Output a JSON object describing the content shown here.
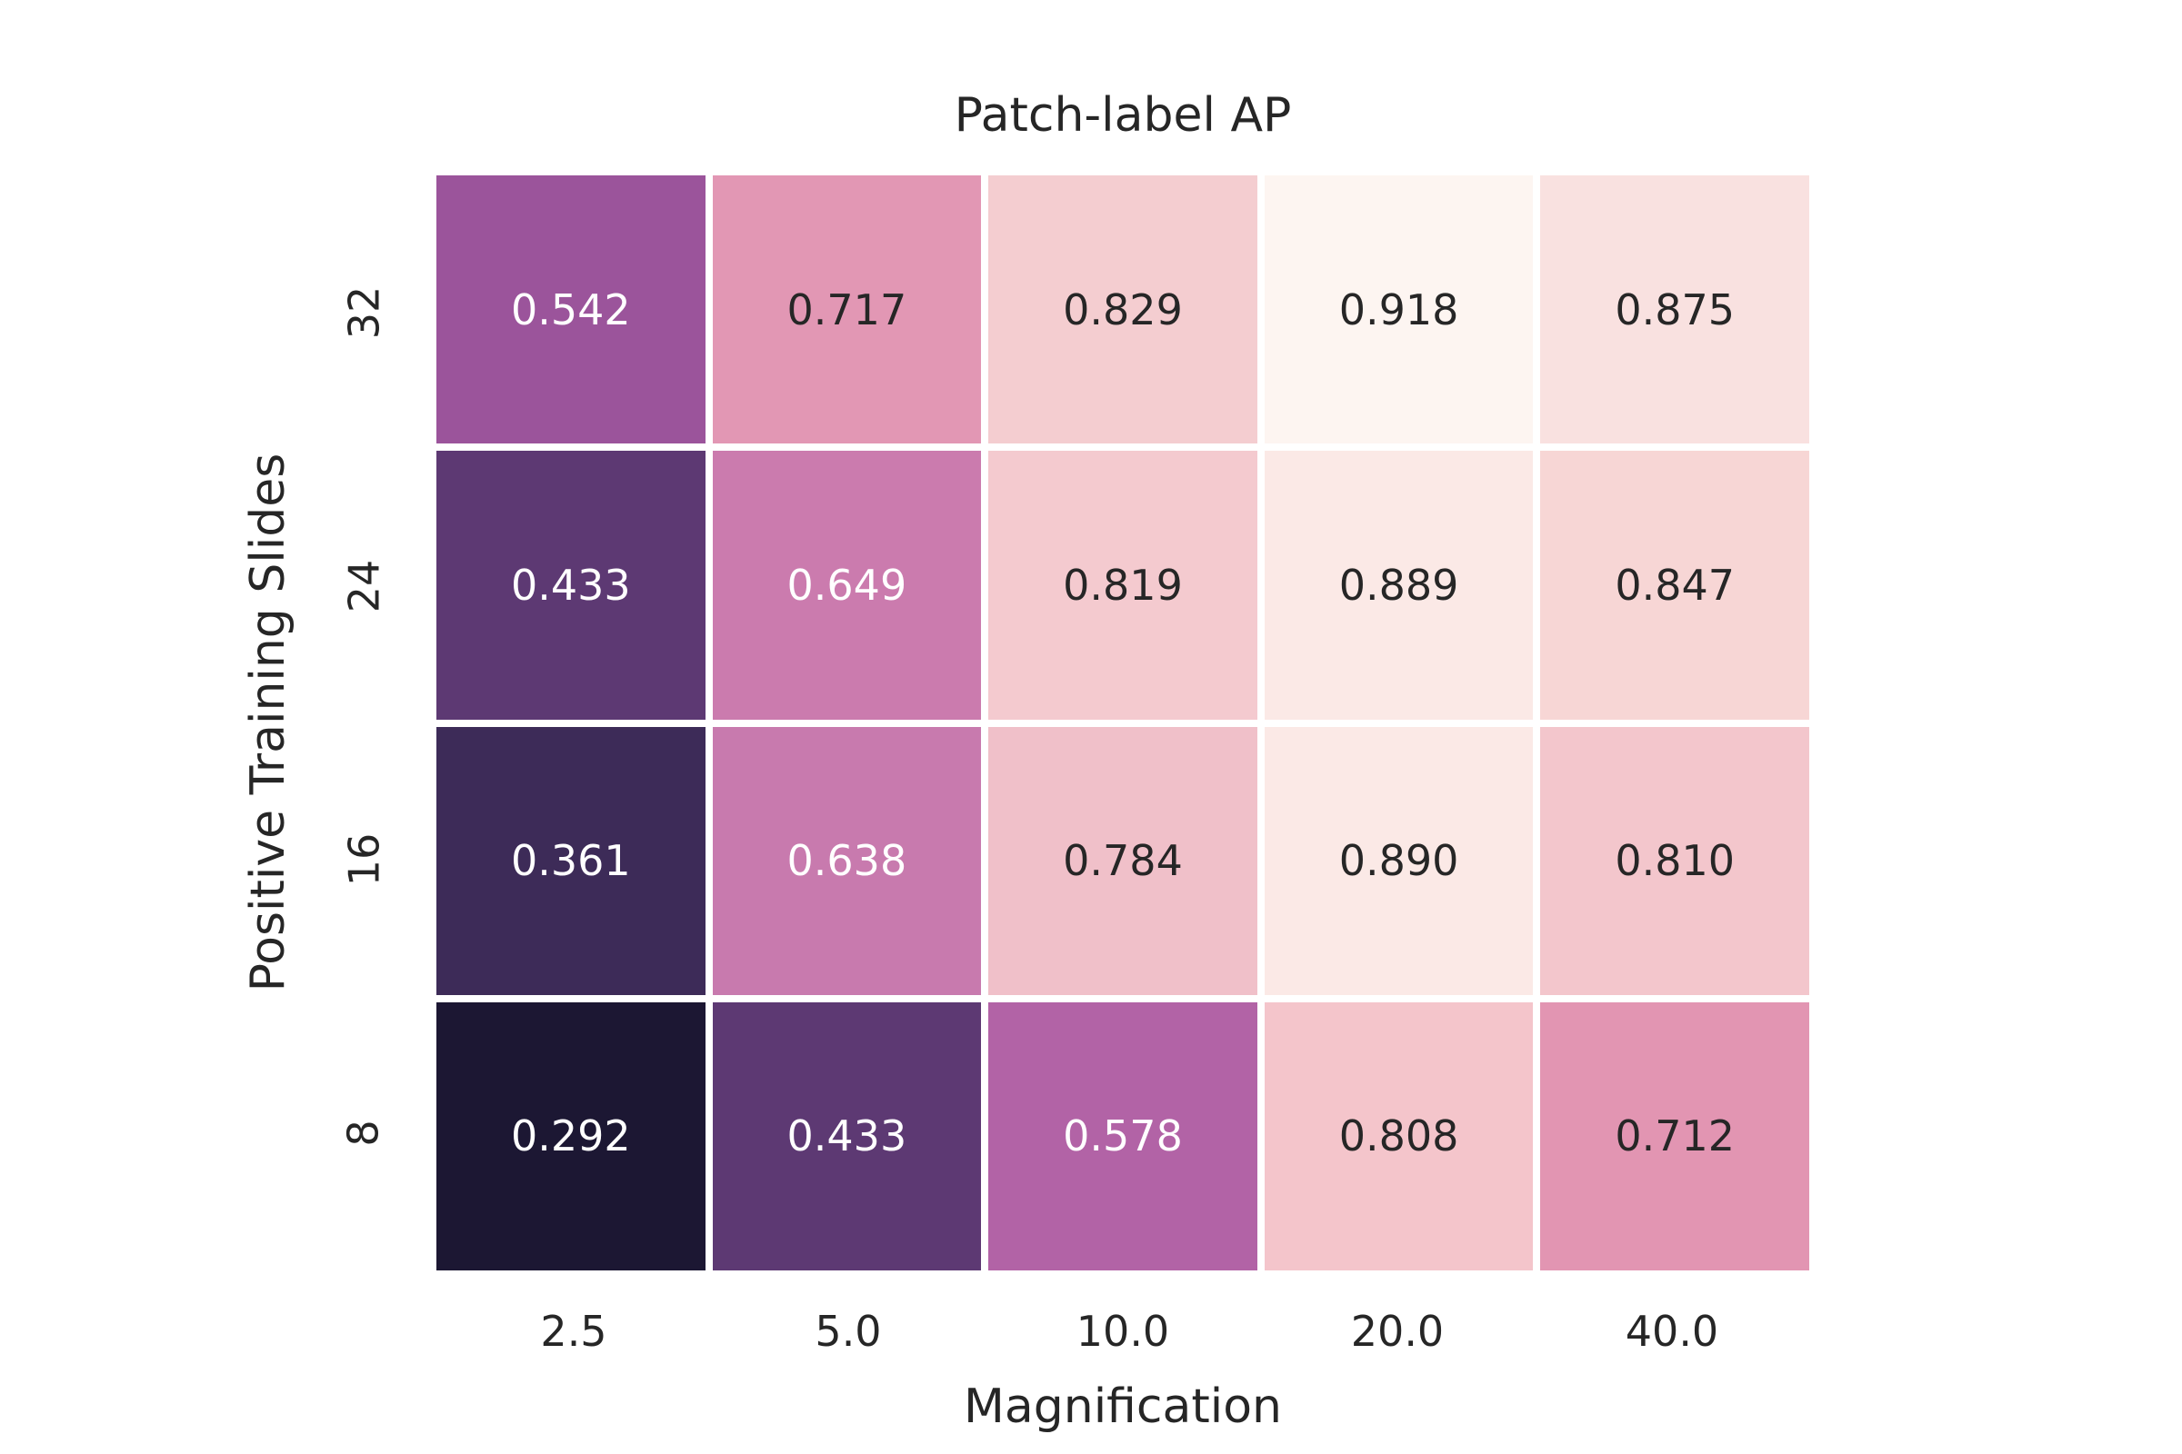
{
  "chart_data": {
    "type": "heatmap",
    "title": "Patch-label AP",
    "xlabel": "Magnification",
    "ylabel": "Positive Training Slides",
    "x_categories": [
      "2.5",
      "5.0",
      "10.0",
      "20.0",
      "40.0"
    ],
    "y_categories": [
      "32",
      "24",
      "16",
      "8"
    ],
    "values": [
      [
        0.542,
        0.717,
        0.829,
        0.918,
        0.875
      ],
      [
        0.433,
        0.649,
        0.819,
        0.889,
        0.847
      ],
      [
        0.361,
        0.638,
        0.784,
        0.89,
        0.81
      ],
      [
        0.292,
        0.433,
        0.578,
        0.808,
        0.712
      ]
    ],
    "cell_colors": [
      [
        "#9b549b",
        "#e297b4",
        "#f4cdd0",
        "#fdf5f1",
        "#f9e1e0"
      ],
      [
        "#5d3973",
        "#cb7bae",
        "#f4cacf",
        "#fbe9e6",
        "#f7d6d5"
      ],
      [
        "#3d2b58",
        "#c87aae",
        "#f0c0c9",
        "#fbe9e6",
        "#f3c6cc"
      ],
      [
        "#1c1733",
        "#5d3973",
        "#b263a6",
        "#f4c5cb",
        "#e295b2"
      ]
    ],
    "value_decimals": 3,
    "annotation_colors": {
      "light": "#ffffff",
      "dark": "#262626"
    },
    "grid_line_color": "#ffffff",
    "background_color": "#ffffff",
    "value_range": [
      0.292,
      0.918
    ],
    "legend": "none",
    "y_tick_rotation_deg": -90
  }
}
